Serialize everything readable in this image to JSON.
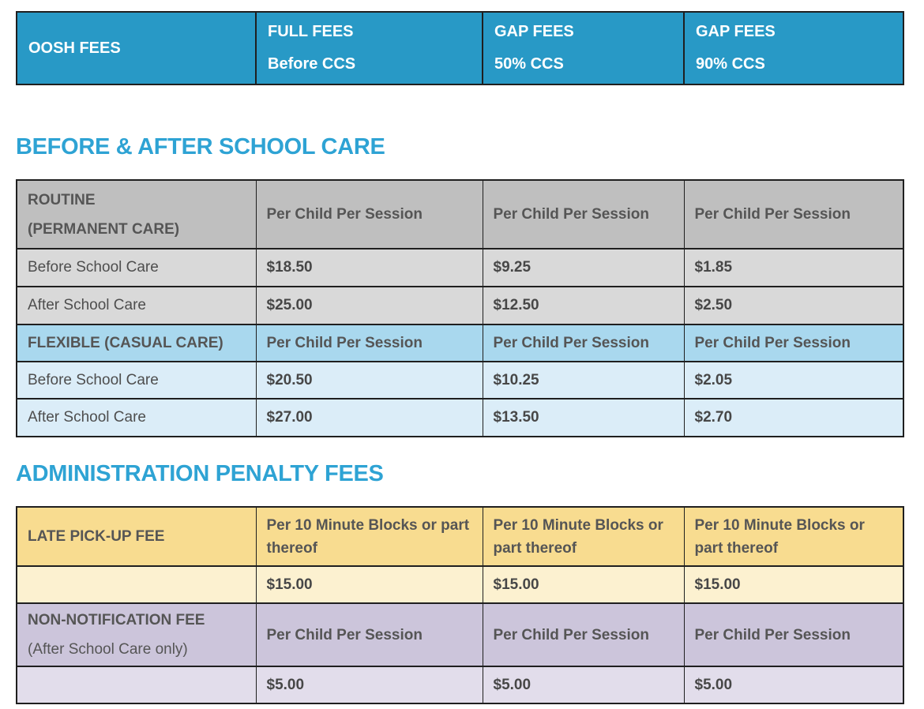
{
  "colors": {
    "teal-bg": "#2899C6",
    "heading-text": "#2EA3D4",
    "gray-header-bg": "#BFBFBF",
    "gray-row-bg": "#D9D9D9",
    "blue-header-bg": "#A9D8EE",
    "blue-row-bg": "#DBEDF8",
    "gold-header-bg": "#F8DC90",
    "gold-row-bg": "#FCF1D0",
    "purple-header-bg": "#CCC5DB",
    "purple-row-bg": "#E2DDEB",
    "body-text": "#4E4E4E",
    "header-row-text": "#555555",
    "border": "#1F1F1F",
    "title-text": "#FFFFFF"
  },
  "title_bar": {
    "product": "OOSH FEES",
    "full_fees_line1": "FULL FEES",
    "full_fees_line2": "Before CCS",
    "gap50_line1": "GAP FEES",
    "gap50_line2": "50% CCS",
    "gap90_line1": "GAP FEES",
    "gap90_line2": "90% CCS"
  },
  "sections": [
    {
      "heading": "BEFORE & AFTER SCHOOL CARE",
      "groups": [
        {
          "name_line1": "ROUTINE",
          "name_line2": "(PERMANENT CARE)",
          "unit": "Per Child Per Session",
          "rows": [
            {
              "label": "Before School Care",
              "values": [
                "$18.50",
                "$9.25",
                "$1.85"
              ]
            },
            {
              "label": "After School Care",
              "values": [
                "$25.00",
                "$12.50",
                "$2.50"
              ]
            }
          ]
        },
        {
          "name_line1": "FLEXIBLE (CASUAL CARE)",
          "name_line2": "",
          "unit": "Per Child Per Session",
          "rows": [
            {
              "label": "Before School Care",
              "values": [
                "$20.50",
                "$10.25",
                "$2.05"
              ]
            },
            {
              "label": "After School Care",
              "values": [
                "$27.00",
                "$13.50",
                "$2.70"
              ]
            }
          ]
        }
      ]
    },
    {
      "heading": "ADMINISTRATION PENALTY FEES",
      "groups": [
        {
          "name_line1": "LATE PICK-UP FEE",
          "name_line2": "",
          "unit": "Per 10 Minute Blocks or part thereof",
          "rows": [
            {
              "label": "",
              "values": [
                "$15.00",
                "$15.00",
                "$15.00"
              ]
            }
          ]
        },
        {
          "name_line1": "NON-NOTIFICATION FEE",
          "name_line2": "(After School Care only)",
          "unit": "Per Child Per Session",
          "rows": [
            {
              "label": "",
              "values": [
                "$5.00",
                "$5.00",
                "$5.00"
              ]
            }
          ]
        }
      ]
    }
  ]
}
